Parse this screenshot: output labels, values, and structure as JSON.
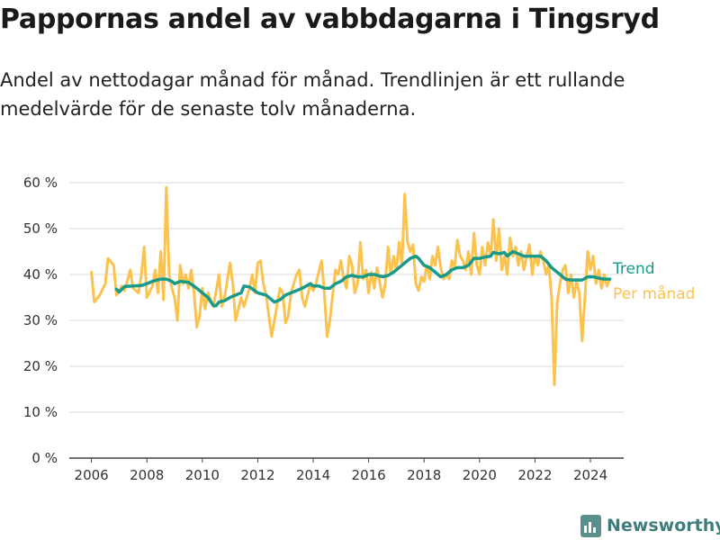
{
  "header": {
    "title": "Pappornas andel av vabbdagarna i Tingsryd",
    "subtitle": "Andel av nettodagar månad för månad. Trendlinjen är ett rullande medelvärde för de senaste tolv månaderna."
  },
  "brand": {
    "name": "Newsworthy",
    "icon": "bar-chart-logo-icon"
  },
  "chart_data": {
    "type": "line",
    "title": "Pappornas andel av vabbdagarna i Tingsryd",
    "xlabel": "",
    "ylabel": "",
    "xlim": [
      2005.2,
      2025.2
    ],
    "ylim": [
      0,
      60
    ],
    "grid": true,
    "legend_placement": "right-end-of-lines",
    "x_ticks": [
      2006,
      2008,
      2010,
      2012,
      2014,
      2016,
      2018,
      2020,
      2022,
      2024
    ],
    "x_tick_labels": [
      "2006",
      "2008",
      "2010",
      "2012",
      "2014",
      "2016",
      "2018",
      "2020",
      "2022",
      "2024"
    ],
    "y_ticks": [
      0,
      10,
      20,
      30,
      40,
      50,
      60
    ],
    "y_tick_labels": [
      "0 %",
      "10 %",
      "20 %",
      "30 %",
      "40 %",
      "50 %",
      "60 %"
    ],
    "series": [
      {
        "name": "Per månad",
        "color": "#fcc24e",
        "points": [
          [
            2006.0,
            40.5
          ],
          [
            2006.1,
            34.0
          ],
          [
            2006.3,
            35.5
          ],
          [
            2006.5,
            38.0
          ],
          [
            2006.6,
            43.5
          ],
          [
            2006.8,
            42.0
          ],
          [
            2006.9,
            35.5
          ],
          [
            2007.1,
            37.5
          ],
          [
            2007.2,
            36.5
          ],
          [
            2007.4,
            41.0
          ],
          [
            2007.5,
            37.0
          ],
          [
            2007.7,
            36.0
          ],
          [
            2007.8,
            40.0
          ],
          [
            2007.9,
            46.0
          ],
          [
            2008.0,
            35.0
          ],
          [
            2008.2,
            37.5
          ],
          [
            2008.3,
            41.0
          ],
          [
            2008.4,
            36.0
          ],
          [
            2008.5,
            45.0
          ],
          [
            2008.6,
            34.5
          ],
          [
            2008.7,
            59.0
          ],
          [
            2008.8,
            40.0
          ],
          [
            2008.9,
            37.0
          ],
          [
            2009.0,
            35.0
          ],
          [
            2009.1,
            30.0
          ],
          [
            2009.2,
            42.0
          ],
          [
            2009.3,
            38.0
          ],
          [
            2009.4,
            40.0
          ],
          [
            2009.5,
            37.0
          ],
          [
            2009.6,
            41.0
          ],
          [
            2009.7,
            36.0
          ],
          [
            2009.8,
            28.5
          ],
          [
            2009.9,
            31.0
          ],
          [
            2010.0,
            37.0
          ],
          [
            2010.1,
            32.5
          ],
          [
            2010.2,
            36.0
          ],
          [
            2010.4,
            33.0
          ],
          [
            2010.6,
            40.0
          ],
          [
            2010.7,
            33.0
          ],
          [
            2010.8,
            35.0
          ],
          [
            2011.0,
            42.5
          ],
          [
            2011.1,
            38.0
          ],
          [
            2011.2,
            30.0
          ],
          [
            2011.4,
            35.0
          ],
          [
            2011.5,
            33.0
          ],
          [
            2011.7,
            37.0
          ],
          [
            2011.8,
            40.0
          ],
          [
            2011.9,
            36.0
          ],
          [
            2012.0,
            42.5
          ],
          [
            2012.1,
            43.0
          ],
          [
            2012.2,
            38.0
          ],
          [
            2012.3,
            35.5
          ],
          [
            2012.5,
            26.5
          ],
          [
            2012.6,
            30.0
          ],
          [
            2012.8,
            37.0
          ],
          [
            2012.9,
            36.0
          ],
          [
            2013.0,
            29.5
          ],
          [
            2013.1,
            31.0
          ],
          [
            2013.2,
            36.0
          ],
          [
            2013.4,
            40.0
          ],
          [
            2013.5,
            41.0
          ],
          [
            2013.6,
            35.0
          ],
          [
            2013.7,
            33.0
          ],
          [
            2013.9,
            38.0
          ],
          [
            2014.0,
            36.5
          ],
          [
            2014.1,
            38.0
          ],
          [
            2014.3,
            43.0
          ],
          [
            2014.4,
            36.0
          ],
          [
            2014.5,
            26.5
          ],
          [
            2014.6,
            30.0
          ],
          [
            2014.8,
            41.0
          ],
          [
            2014.9,
            40.0
          ],
          [
            2015.0,
            43.0
          ],
          [
            2015.1,
            39.0
          ],
          [
            2015.2,
            37.0
          ],
          [
            2015.3,
            44.0
          ],
          [
            2015.4,
            42.0
          ],
          [
            2015.5,
            36.0
          ],
          [
            2015.6,
            38.0
          ],
          [
            2015.7,
            47.0
          ],
          [
            2015.8,
            39.0
          ],
          [
            2015.9,
            41.0
          ],
          [
            2016.0,
            36.0
          ],
          [
            2016.1,
            40.5
          ],
          [
            2016.2,
            37.0
          ],
          [
            2016.3,
            41.5
          ],
          [
            2016.5,
            35.0
          ],
          [
            2016.6,
            38.0
          ],
          [
            2016.7,
            46.0
          ],
          [
            2016.8,
            40.0
          ],
          [
            2016.9,
            44.0
          ],
          [
            2017.0,
            41.0
          ],
          [
            2017.1,
            47.0
          ],
          [
            2017.2,
            42.0
          ],
          [
            2017.3,
            57.5
          ],
          [
            2017.4,
            47.0
          ],
          [
            2017.5,
            45.0
          ],
          [
            2017.6,
            46.5
          ],
          [
            2017.7,
            38.0
          ],
          [
            2017.8,
            36.5
          ],
          [
            2017.9,
            39.5
          ],
          [
            2018.0,
            38.5
          ],
          [
            2018.1,
            42.0
          ],
          [
            2018.2,
            39.0
          ],
          [
            2018.3,
            44.0
          ],
          [
            2018.4,
            42.0
          ],
          [
            2018.5,
            46.0
          ],
          [
            2018.6,
            41.5
          ],
          [
            2018.7,
            39.0
          ],
          [
            2018.8,
            40.0
          ],
          [
            2018.9,
            39.0
          ],
          [
            2019.0,
            43.0
          ],
          [
            2019.1,
            41.5
          ],
          [
            2019.2,
            47.5
          ],
          [
            2019.3,
            44.0
          ],
          [
            2019.4,
            43.0
          ],
          [
            2019.5,
            41.0
          ],
          [
            2019.6,
            45.0
          ],
          [
            2019.7,
            40.0
          ],
          [
            2019.8,
            49.0
          ],
          [
            2019.9,
            42.0
          ],
          [
            2020.0,
            40.0
          ],
          [
            2020.1,
            46.0
          ],
          [
            2020.2,
            42.0
          ],
          [
            2020.3,
            47.0
          ],
          [
            2020.4,
            44.0
          ],
          [
            2020.5,
            52.0
          ],
          [
            2020.6,
            43.0
          ],
          [
            2020.7,
            50.0
          ],
          [
            2020.8,
            41.0
          ],
          [
            2020.9,
            44.0
          ],
          [
            2021.0,
            40.0
          ],
          [
            2021.1,
            48.0
          ],
          [
            2021.2,
            44.0
          ],
          [
            2021.3,
            46.0
          ],
          [
            2021.4,
            42.0
          ],
          [
            2021.5,
            45.0
          ],
          [
            2021.6,
            41.0
          ],
          [
            2021.7,
            44.0
          ],
          [
            2021.8,
            46.5
          ],
          [
            2021.9,
            40.0
          ],
          [
            2022.0,
            44.0
          ],
          [
            2022.1,
            42.0
          ],
          [
            2022.2,
            45.0
          ],
          [
            2022.3,
            43.0
          ],
          [
            2022.4,
            40.0
          ],
          [
            2022.5,
            42.0
          ],
          [
            2022.6,
            35.0
          ],
          [
            2022.7,
            16.0
          ],
          [
            2022.8,
            34.0
          ],
          [
            2022.9,
            38.0
          ],
          [
            2023.0,
            41.0
          ],
          [
            2023.1,
            42.0
          ],
          [
            2023.2,
            36.0
          ],
          [
            2023.3,
            40.0
          ],
          [
            2023.4,
            35.0
          ],
          [
            2023.5,
            38.5
          ],
          [
            2023.6,
            36.0
          ],
          [
            2023.7,
            25.5
          ],
          [
            2023.8,
            35.0
          ],
          [
            2023.9,
            45.0
          ],
          [
            2024.0,
            41.0
          ],
          [
            2024.1,
            44.0
          ],
          [
            2024.2,
            38.0
          ],
          [
            2024.3,
            41.0
          ],
          [
            2024.4,
            37.0
          ],
          [
            2024.5,
            40.0
          ],
          [
            2024.6,
            37.5
          ],
          [
            2024.7,
            39.0
          ]
        ]
      },
      {
        "name": "Trend",
        "color": "#1a9a8a",
        "points": [
          [
            2006.9,
            36.8
          ],
          [
            2007.0,
            36.2
          ],
          [
            2007.2,
            37.4
          ],
          [
            2007.5,
            37.5
          ],
          [
            2007.8,
            37.6
          ],
          [
            2008.0,
            38.0
          ],
          [
            2008.2,
            38.5
          ],
          [
            2008.5,
            39.0
          ],
          [
            2008.7,
            39.0
          ],
          [
            2008.9,
            38.5
          ],
          [
            2009.0,
            38.0
          ],
          [
            2009.2,
            38.5
          ],
          [
            2009.5,
            38.3
          ],
          [
            2009.8,
            37.0
          ],
          [
            2010.0,
            36.0
          ],
          [
            2010.2,
            35.0
          ],
          [
            2010.4,
            33.2
          ],
          [
            2010.5,
            33.2
          ],
          [
            2010.6,
            34.0
          ],
          [
            2010.8,
            34.3
          ],
          [
            2011.0,
            35.0
          ],
          [
            2011.2,
            35.5
          ],
          [
            2011.4,
            36.0
          ],
          [
            2011.5,
            37.5
          ],
          [
            2011.7,
            37.3
          ],
          [
            2012.0,
            36.0
          ],
          [
            2012.3,
            35.5
          ],
          [
            2012.5,
            34.5
          ],
          [
            2012.6,
            34.0
          ],
          [
            2012.8,
            34.5
          ],
          [
            2013.0,
            35.5
          ],
          [
            2013.2,
            36.0
          ],
          [
            2013.4,
            36.5
          ],
          [
            2013.6,
            37.0
          ],
          [
            2013.9,
            38.0
          ],
          [
            2014.0,
            37.5
          ],
          [
            2014.2,
            37.5
          ],
          [
            2014.4,
            37.0
          ],
          [
            2014.6,
            37.0
          ],
          [
            2014.8,
            38.0
          ],
          [
            2015.0,
            38.5
          ],
          [
            2015.2,
            39.5
          ],
          [
            2015.4,
            39.8
          ],
          [
            2015.6,
            39.5
          ],
          [
            2015.8,
            39.5
          ],
          [
            2016.0,
            40.0
          ],
          [
            2016.2,
            40.0
          ],
          [
            2016.5,
            39.5
          ],
          [
            2016.7,
            39.8
          ],
          [
            2016.9,
            40.5
          ],
          [
            2017.0,
            41.0
          ],
          [
            2017.2,
            42.0
          ],
          [
            2017.5,
            43.5
          ],
          [
            2017.7,
            44.0
          ],
          [
            2017.8,
            43.5
          ],
          [
            2018.0,
            42.0
          ],
          [
            2018.2,
            41.5
          ],
          [
            2018.4,
            40.5
          ],
          [
            2018.6,
            39.5
          ],
          [
            2018.8,
            40.0
          ],
          [
            2019.0,
            41.0
          ],
          [
            2019.2,
            41.5
          ],
          [
            2019.4,
            41.5
          ],
          [
            2019.6,
            42.0
          ],
          [
            2019.8,
            43.5
          ],
          [
            2020.0,
            43.5
          ],
          [
            2020.2,
            43.8
          ],
          [
            2020.4,
            44.0
          ],
          [
            2020.5,
            44.8
          ],
          [
            2020.7,
            44.5
          ],
          [
            2020.9,
            44.8
          ],
          [
            2021.0,
            44.0
          ],
          [
            2021.2,
            45.0
          ],
          [
            2021.4,
            44.5
          ],
          [
            2021.6,
            44.0
          ],
          [
            2021.8,
            44.0
          ],
          [
            2022.0,
            44.0
          ],
          [
            2022.2,
            44.0
          ],
          [
            2022.4,
            43.0
          ],
          [
            2022.6,
            41.5
          ],
          [
            2022.7,
            41.0
          ],
          [
            2022.9,
            40.0
          ],
          [
            2023.1,
            39.0
          ],
          [
            2023.3,
            38.8
          ],
          [
            2023.5,
            38.8
          ],
          [
            2023.7,
            38.8
          ],
          [
            2023.9,
            39.5
          ],
          [
            2024.1,
            39.5
          ],
          [
            2024.3,
            39.2
          ],
          [
            2024.5,
            39.0
          ],
          [
            2024.7,
            39.0
          ]
        ]
      }
    ]
  }
}
